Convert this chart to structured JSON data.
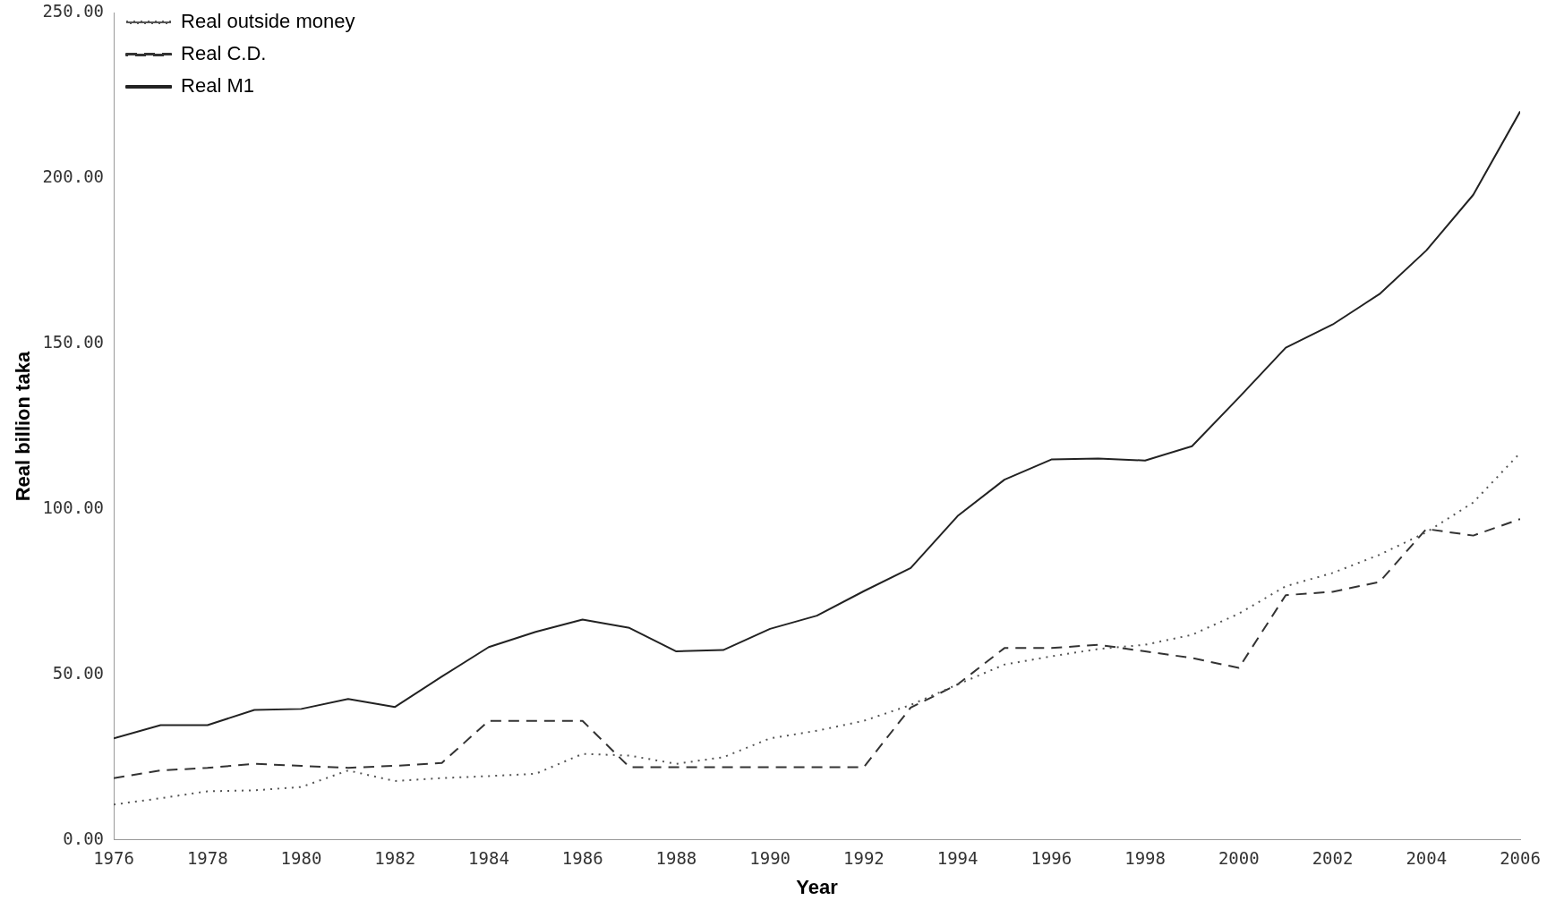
{
  "chart_data": {
    "type": "line",
    "xlabel": "Year",
    "ylabel": "Real billion taka",
    "x": [
      1976,
      1977,
      1978,
      1979,
      1980,
      1981,
      1982,
      1983,
      1984,
      1985,
      1986,
      1987,
      1988,
      1989,
      1990,
      1991,
      1992,
      1993,
      1994,
      1995,
      1996,
      1997,
      1998,
      1999,
      2000,
      2001,
      2002,
      2003,
      2004,
      2005,
      2006
    ],
    "series": [
      {
        "name": "Real outside money",
        "color": "#555555",
        "line_style": "dotted",
        "values": [
          10.7,
          12.6,
          14.7,
          15,
          16,
          21,
          17.8,
          18.7,
          19.3,
          20,
          26,
          25.5,
          23,
          25,
          30.7,
          33,
          36,
          40.8,
          47,
          53,
          55.5,
          57.7,
          59,
          62,
          68.4,
          76.7,
          80.7,
          86.2,
          93,
          102,
          117
        ]
      },
      {
        "name": "Real C.D.",
        "color": "#333333",
        "line_style": "dashed",
        "values": [
          18.7,
          21,
          21.8,
          23,
          22.4,
          21.8,
          22.4,
          23.3,
          36,
          36,
          36,
          22,
          22,
          22,
          22,
          22,
          22,
          40,
          47,
          58,
          58,
          59,
          57,
          55,
          52,
          74,
          75,
          78,
          94,
          92,
          97
        ]
      },
      {
        "name": "Real M1",
        "color": "#222222",
        "line_style": "solid",
        "values": [
          30.7,
          34.7,
          34.7,
          39.3,
          39.6,
          42.6,
          40.2,
          49.4,
          58.3,
          62.9,
          66.6,
          64.1,
          57,
          57.4,
          63.8,
          67.8,
          75.2,
          82.2,
          97.9,
          108.9,
          115,
          115.3,
          114.7,
          119,
          133.7,
          148.8,
          155.8,
          165,
          178.2,
          195,
          220.2
        ]
      }
    ],
    "xlim": [
      1976,
      2006
    ],
    "xticks": [
      1976,
      1978,
      1980,
      1982,
      1984,
      1986,
      1988,
      1990,
      1992,
      1994,
      1996,
      1998,
      2000,
      2002,
      2004,
      2006
    ],
    "ylim": [
      0,
      250
    ],
    "yticks": [
      {
        "value": 0,
        "label": "0.00"
      },
      {
        "value": 50,
        "label": "50.00"
      },
      {
        "value": 100,
        "label": "100.00"
      },
      {
        "value": 150,
        "label": "150.00"
      },
      {
        "value": 200,
        "label": "200.00"
      },
      {
        "value": 250,
        "label": "250.00"
      }
    ],
    "grid": false,
    "legend": "top left",
    "marker": "none"
  }
}
